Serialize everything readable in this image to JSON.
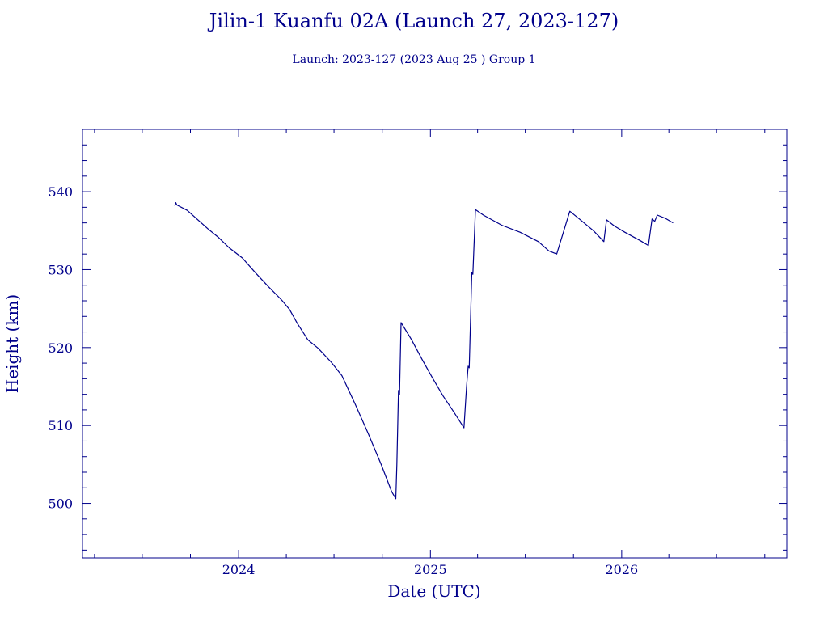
{
  "title": "Jilin-1 Kuanfu 02A (Launch 27, 2023-127)",
  "subtitle": "Launch: 2023-127  (2023 Aug 25 )  Group 1",
  "colors": {
    "ink": "#00008b",
    "background": "#ffffff"
  },
  "chart_data": {
    "type": "line",
    "title": "Jilin-1 Kuanfu 02A (Launch 27, 2023-127)",
    "xlabel": "Date (UTC)",
    "ylabel": "Height (km)",
    "xlim": [
      "2023-03-09",
      "2026-11-12"
    ],
    "ylim": [
      493,
      548
    ],
    "x_ticks": [
      "2024",
      "2025",
      "2026"
    ],
    "y_ticks": [
      500,
      510,
      520,
      530,
      540
    ],
    "grid": false,
    "legend": "none",
    "series": [
      {
        "points": [
          [
            "2023-09-01",
            538.2
          ],
          [
            "2023-09-03",
            538.6
          ],
          [
            "2023-09-05",
            538.3
          ],
          [
            "2023-09-25",
            537.6
          ],
          [
            "2023-10-15",
            536.4
          ],
          [
            "2023-11-04",
            535.2
          ],
          [
            "2023-11-24",
            534.1
          ],
          [
            "2023-12-14",
            532.8
          ],
          [
            "2024-01-08",
            531.5
          ],
          [
            "2024-02-02",
            529.6
          ],
          [
            "2024-02-27",
            527.8
          ],
          [
            "2024-03-23",
            526.1
          ],
          [
            "2024-04-07",
            524.9
          ],
          [
            "2024-04-22",
            523.1
          ],
          [
            "2024-05-12",
            521.0
          ],
          [
            "2024-06-01",
            519.9
          ],
          [
            "2024-06-26",
            518.1
          ],
          [
            "2024-07-16",
            516.4
          ],
          [
            "2024-08-10",
            512.8
          ],
          [
            "2024-09-04",
            509.0
          ],
          [
            "2024-09-29",
            505.0
          ],
          [
            "2024-10-19",
            501.5
          ],
          [
            "2024-10-27",
            500.6
          ],
          [
            "2024-10-29",
            505.0
          ],
          [
            "2024-11-01",
            514.5
          ],
          [
            "2024-11-03",
            514.0
          ],
          [
            "2024-11-06",
            523.2
          ],
          [
            "2024-11-26",
            521.0
          ],
          [
            "2024-12-16",
            518.5
          ],
          [
            "2025-01-05",
            516.1
          ],
          [
            "2025-01-25",
            513.8
          ],
          [
            "2025-02-14",
            511.8
          ],
          [
            "2025-03-06",
            509.7
          ],
          [
            "2025-03-11",
            515.0
          ],
          [
            "2025-03-14",
            517.6
          ],
          [
            "2025-03-16",
            517.4
          ],
          [
            "2025-03-21",
            529.6
          ],
          [
            "2025-03-23",
            529.4
          ],
          [
            "2025-03-28",
            537.7
          ],
          [
            "2025-04-12",
            537.0
          ],
          [
            "2025-05-17",
            535.7
          ],
          [
            "2025-06-21",
            534.8
          ],
          [
            "2025-07-26",
            533.6
          ],
          [
            "2025-08-15",
            532.4
          ],
          [
            "2025-08-30",
            532.0
          ],
          [
            "2025-09-24",
            537.5
          ],
          [
            "2025-10-14",
            536.4
          ],
          [
            "2025-11-08",
            535.0
          ],
          [
            "2025-11-28",
            533.6
          ],
          [
            "2025-12-03",
            536.4
          ],
          [
            "2025-12-18",
            535.6
          ],
          [
            "2026-01-07",
            534.8
          ],
          [
            "2026-02-06",
            533.7
          ],
          [
            "2026-02-21",
            533.1
          ],
          [
            "2026-02-28",
            536.5
          ],
          [
            "2026-03-05",
            536.2
          ],
          [
            "2026-03-10",
            537.0
          ],
          [
            "2026-03-25",
            536.6
          ],
          [
            "2026-04-09",
            536.0
          ]
        ]
      }
    ]
  }
}
